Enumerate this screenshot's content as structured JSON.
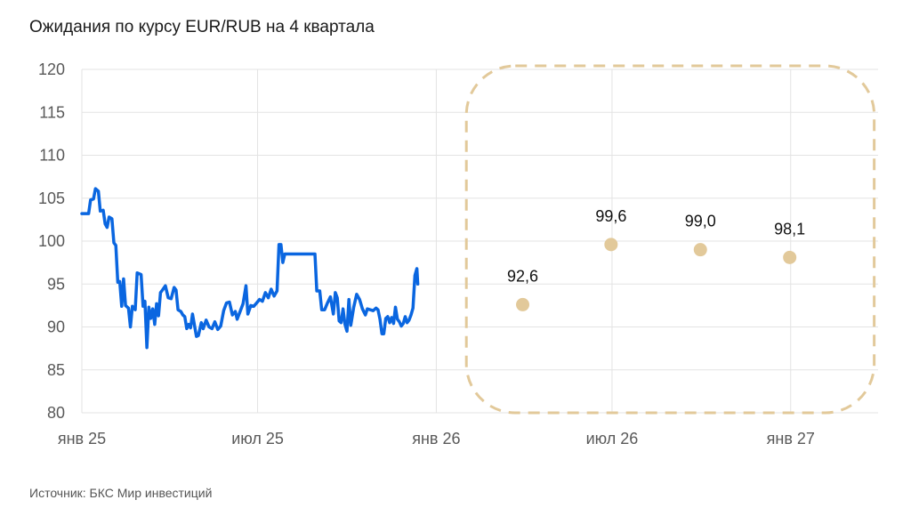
{
  "title": "Ожидания по курсу EUR/RUB на 4 квартала",
  "source": "Источник: БКС Мир инвестиций",
  "colors": {
    "line": "#0a66e0",
    "forecast_point": "#e2c99a",
    "forecast_frame": "#e2c99a",
    "grid": "#e3e3e3"
  },
  "chart_data": {
    "type": "line+scatter",
    "ylim": [
      80,
      120
    ],
    "yticks": [
      80,
      85,
      90,
      95,
      100,
      105,
      110,
      115,
      120
    ],
    "xticks": [
      {
        "label": "янв 25",
        "date": "2025-01-01"
      },
      {
        "label": "июл 25",
        "date": "2025-07-01"
      },
      {
        "label": "янв 26",
        "date": "2026-01-01"
      },
      {
        "label": "июл 26",
        "date": "2026-07-01"
      },
      {
        "label": "янв 27",
        "date": "2027-01-01"
      }
    ],
    "xlim": [
      "2025-01-01",
      "2027-04-01"
    ],
    "grid": true,
    "series": [
      {
        "type": "line",
        "points": [
          [
            "2025-01-01",
            103.2
          ],
          [
            "2025-01-08",
            103.2
          ],
          [
            "2025-01-10",
            104.8
          ],
          [
            "2025-01-13",
            104.9
          ],
          [
            "2025-01-15",
            106.1
          ],
          [
            "2025-01-18",
            105.8
          ],
          [
            "2025-01-20",
            103.5
          ],
          [
            "2025-01-23",
            103.6
          ],
          [
            "2025-01-25",
            102.0
          ],
          [
            "2025-01-27",
            101.6
          ],
          [
            "2025-01-29",
            102.8
          ],
          [
            "2025-02-01",
            102.6
          ],
          [
            "2025-02-03",
            99.8
          ],
          [
            "2025-02-05",
            99.5
          ],
          [
            "2025-02-07",
            95.2
          ],
          [
            "2025-02-09",
            95.3
          ],
          [
            "2025-02-11",
            92.4
          ],
          [
            "2025-02-13",
            95.6
          ],
          [
            "2025-02-15",
            92.5
          ],
          [
            "2025-02-18",
            92.2
          ],
          [
            "2025-02-20",
            90.0
          ],
          [
            "2025-02-22",
            92.4
          ],
          [
            "2025-02-25",
            92.0
          ],
          [
            "2025-02-27",
            96.3
          ],
          [
            "2025-03-03",
            96.1
          ],
          [
            "2025-03-05",
            92.4
          ],
          [
            "2025-03-07",
            93.0
          ],
          [
            "2025-03-09",
            87.6
          ],
          [
            "2025-03-11",
            92.3
          ],
          [
            "2025-03-13",
            91.0
          ],
          [
            "2025-03-15",
            92.1
          ],
          [
            "2025-03-17",
            90.3
          ],
          [
            "2025-03-19",
            92.7
          ],
          [
            "2025-03-21",
            91.3
          ],
          [
            "2025-03-23",
            94.0
          ],
          [
            "2025-03-25",
            94.3
          ],
          [
            "2025-03-28",
            94.8
          ],
          [
            "2025-03-31",
            93.4
          ],
          [
            "2025-04-03",
            93.3
          ],
          [
            "2025-04-06",
            94.6
          ],
          [
            "2025-04-08",
            94.3
          ],
          [
            "2025-04-10",
            92.0
          ],
          [
            "2025-04-13",
            91.8
          ],
          [
            "2025-04-15",
            91.4
          ],
          [
            "2025-04-17",
            91.2
          ],
          [
            "2025-04-19",
            89.8
          ],
          [
            "2025-04-21",
            90.3
          ],
          [
            "2025-04-23",
            89.9
          ],
          [
            "2025-04-25",
            91.5
          ],
          [
            "2025-04-27",
            90.2
          ],
          [
            "2025-04-29",
            88.9
          ],
          [
            "2025-05-01",
            89.0
          ],
          [
            "2025-05-04",
            90.5
          ],
          [
            "2025-05-06",
            89.8
          ],
          [
            "2025-05-09",
            90.8
          ],
          [
            "2025-05-12",
            90.0
          ],
          [
            "2025-05-15",
            89.8
          ],
          [
            "2025-05-18",
            90.6
          ],
          [
            "2025-05-21",
            89.7
          ],
          [
            "2025-05-24",
            90.1
          ],
          [
            "2025-05-27",
            91.9
          ],
          [
            "2025-05-30",
            92.8
          ],
          [
            "2025-06-02",
            92.9
          ],
          [
            "2025-06-05",
            91.4
          ],
          [
            "2025-06-08",
            91.8
          ],
          [
            "2025-06-10",
            90.9
          ],
          [
            "2025-06-13",
            91.8
          ],
          [
            "2025-06-16",
            92.7
          ],
          [
            "2025-06-19",
            94.8
          ],
          [
            "2025-06-21",
            91.5
          ],
          [
            "2025-06-24",
            92.5
          ],
          [
            "2025-06-27",
            92.4
          ],
          [
            "2025-06-30",
            92.8
          ],
          [
            "2025-07-03",
            93.2
          ],
          [
            "2025-07-06",
            93.0
          ],
          [
            "2025-07-09",
            94.0
          ],
          [
            "2025-07-12",
            93.4
          ],
          [
            "2025-07-15",
            94.4
          ],
          [
            "2025-07-18",
            93.6
          ],
          [
            "2025-07-21",
            94.2
          ],
          [
            "2025-07-23",
            99.6
          ],
          [
            "2025-07-25",
            99.6
          ],
          [
            "2025-07-27",
            97.5
          ],
          [
            "2025-07-29",
            98.5
          ],
          [
            "2025-08-05",
            98.5
          ],
          [
            "2025-08-20",
            98.5
          ],
          [
            "2025-08-29",
            98.5
          ],
          [
            "2025-08-31",
            94.2
          ],
          [
            "2025-09-03",
            94.2
          ],
          [
            "2025-09-05",
            92.0
          ],
          [
            "2025-09-08",
            92.0
          ],
          [
            "2025-09-11",
            92.8
          ],
          [
            "2025-09-14",
            93.5
          ],
          [
            "2025-09-17",
            91.5
          ],
          [
            "2025-09-19",
            94.0
          ],
          [
            "2025-09-21",
            93.4
          ],
          [
            "2025-09-23",
            90.7
          ],
          [
            "2025-09-25",
            90.5
          ],
          [
            "2025-09-27",
            92.1
          ],
          [
            "2025-09-29",
            90.3
          ],
          [
            "2025-10-01",
            89.5
          ],
          [
            "2025-10-03",
            93.2
          ],
          [
            "2025-10-05",
            90.2
          ],
          [
            "2025-10-08",
            92.3
          ],
          [
            "2025-10-11",
            93.8
          ],
          [
            "2025-10-14",
            93.2
          ],
          [
            "2025-10-17",
            92.1
          ],
          [
            "2025-10-20",
            91.4
          ],
          [
            "2025-10-22",
            92.1
          ],
          [
            "2025-10-25",
            92.0
          ],
          [
            "2025-10-28",
            91.9
          ],
          [
            "2025-10-31",
            92.2
          ],
          [
            "2025-11-02",
            92.0
          ],
          [
            "2025-11-04",
            90.9
          ],
          [
            "2025-11-06",
            89.2
          ],
          [
            "2025-11-08",
            89.2
          ],
          [
            "2025-11-10",
            91.0
          ],
          [
            "2025-11-12",
            91.2
          ],
          [
            "2025-11-14",
            90.5
          ],
          [
            "2025-11-16",
            91.1
          ],
          [
            "2025-11-18",
            90.4
          ],
          [
            "2025-11-20",
            92.3
          ],
          [
            "2025-11-22",
            90.9
          ],
          [
            "2025-11-24",
            90.6
          ],
          [
            "2025-11-26",
            90.1
          ],
          [
            "2025-11-28",
            90.4
          ],
          [
            "2025-11-30",
            91.2
          ],
          [
            "2025-12-02",
            90.5
          ],
          [
            "2025-12-04",
            90.8
          ],
          [
            "2025-12-06",
            91.4
          ],
          [
            "2025-12-08",
            92.2
          ],
          [
            "2025-12-10",
            96.0
          ],
          [
            "2025-12-12",
            96.8
          ],
          [
            "2025-12-13",
            95.0
          ]
        ]
      },
      {
        "type": "scatter",
        "points": [
          {
            "date": "2026-03-31",
            "value": 92.6,
            "label": "92,6"
          },
          {
            "date": "2026-06-30",
            "value": 99.6,
            "label": "99,6"
          },
          {
            "date": "2026-09-30",
            "value": 99.0,
            "label": "99,0"
          },
          {
            "date": "2026-12-31",
            "value": 98.1,
            "label": "98,1"
          }
        ]
      }
    ],
    "forecast_frame": {
      "from": "2026-02-01",
      "to": "2027-03-28",
      "style": "dashed-rounded"
    }
  }
}
